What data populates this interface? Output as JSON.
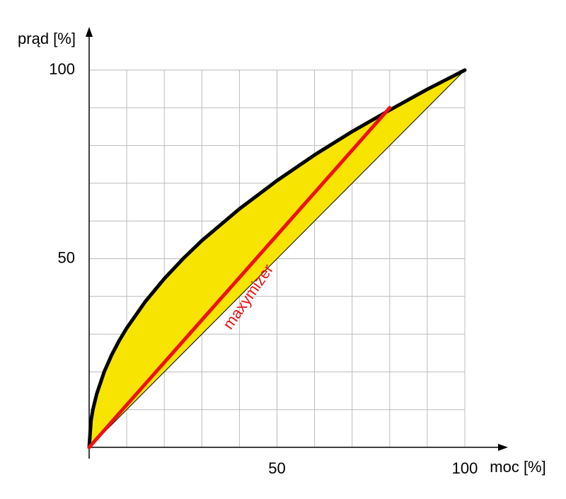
{
  "chart_data": {
    "type": "line",
    "y_label": "prąd [%]",
    "x_label": "moc [%]",
    "annotation": "maxymizer",
    "xlim": [
      0,
      100
    ],
    "ylim": [
      0,
      100
    ],
    "xticks": [
      50,
      100
    ],
    "yticks": [
      50,
      100
    ],
    "xgrid": [
      10,
      20,
      30,
      40,
      50,
      60,
      70,
      80,
      90,
      100
    ],
    "ygrid": [
      10,
      20,
      30,
      40,
      50,
      60,
      70,
      80,
      90,
      100
    ],
    "grid_color": "#bbbbbb",
    "series": [
      {
        "color": "#000000",
        "fill": "#f7e400",
        "fill_to": 2,
        "width": 5,
        "x": [
          0,
          0.5,
          1,
          2,
          4,
          6,
          8,
          10,
          15,
          20,
          25,
          30,
          40,
          50,
          60,
          70,
          80,
          90,
          100
        ],
        "values": [
          0,
          7.1,
          10,
          14.1,
          20,
          24.5,
          28.3,
          31.6,
          38.7,
          44.7,
          50,
          54.8,
          63.2,
          70.7,
          77.5,
          83.7,
          89.4,
          94.9,
          100
        ]
      },
      {
        "color": "#ee1111",
        "width": 5,
        "x": [
          0,
          80
        ],
        "values": [
          0,
          90
        ]
      },
      {
        "color": "#000000",
        "width": 1,
        "x": [
          0,
          100
        ],
        "values": [
          0,
          100
        ]
      }
    ]
  }
}
